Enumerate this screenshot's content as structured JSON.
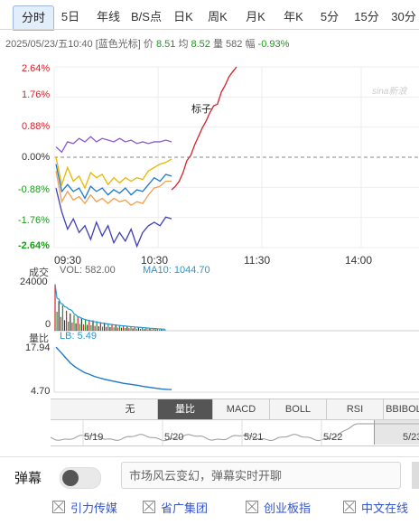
{
  "tabs": [
    "分时",
    "5日",
    "年线",
    "B/S点",
    "日K",
    "周K",
    "月K",
    "年K",
    "5分",
    "15分",
    "30分"
  ],
  "active_tab": "分时",
  "info": {
    "datetime": "2025/05/23/五10:40",
    "name": "[蓝色光标]",
    "price_label": "价",
    "price": "8.51",
    "avg_label": "均",
    "avg": "8.52",
    "volume_label": "量",
    "volume": "582",
    "change_label": "幅",
    "change": "-0.93%"
  },
  "watermark": "sina新浪",
  "annotation": "标子",
  "chart_data": [
    {
      "type": "line",
      "title": "分时",
      "y_ticks": [
        "2.64%",
        "1.76%",
        "0.88%",
        "0.00%",
        "-0.88%",
        "-1.76%",
        "-2.64%"
      ],
      "ylim": [
        -2.64,
        2.64
      ],
      "x_ticks": [
        "09:30",
        "10:30",
        "11:30",
        "14:00"
      ],
      "series": [
        {
          "name": "",
          "color": "#8a5cc9",
          "values": [
            0.3,
            0.15,
            0.45,
            0.4,
            0.55,
            0.45,
            0.6,
            0.45,
            0.55,
            0.5,
            0.45,
            0.55,
            0.45,
            0.5,
            0.4,
            0.45,
            0.4,
            0.45,
            0.45,
            0.5,
            0.45
          ]
        },
        {
          "name": "",
          "color": "#e8b800",
          "values": [
            0.0,
            -0.8,
            -0.3,
            -0.7,
            -0.55,
            -0.9,
            -0.45,
            -0.6,
            -0.5,
            -0.8,
            -0.6,
            -0.75,
            -0.6,
            -0.7,
            -0.6,
            -0.65,
            -0.4,
            -0.3,
            -0.2,
            -0.15,
            -0.05
          ]
        },
        {
          "name": "",
          "color": "#1f78c8",
          "values": [
            -0.2,
            -1.0,
            -0.8,
            -1.0,
            -0.9,
            -1.2,
            -0.85,
            -1.0,
            -0.9,
            -1.1,
            -0.95,
            -1.05,
            -0.9,
            -1.1,
            -0.95,
            -1.0,
            -0.8,
            -0.6,
            -0.7,
            -0.5,
            -0.55
          ]
        },
        {
          "name": "",
          "color": "#f0a050",
          "values": [
            -0.4,
            -1.3,
            -1.0,
            -1.25,
            -1.15,
            -1.35,
            -1.1,
            -1.3,
            -1.2,
            -1.35,
            -1.2,
            -1.3,
            -1.25,
            -1.4,
            -1.3,
            -1.35,
            -1.1,
            -0.9,
            -0.85,
            -0.7,
            -0.7
          ]
        },
        {
          "name": "",
          "color": "#3f3fb5",
          "values": [
            -0.9,
            -1.6,
            -2.1,
            -1.8,
            -2.2,
            -2.0,
            -2.4,
            -1.9,
            -2.3,
            -2.0,
            -2.5,
            -2.2,
            -2.45,
            -2.1,
            -2.6,
            -2.2,
            -2.0,
            -1.9,
            -2.0,
            -1.75,
            -1.8
          ]
        },
        {
          "name": "",
          "color": "#d8202a",
          "values": [
            -0.95,
            -0.85,
            -0.7,
            -0.45,
            -0.1,
            0.05,
            0.35,
            0.6,
            0.85,
            1.05,
            1.3,
            1.5,
            1.55,
            1.9,
            2.1,
            2.35,
            2.5,
            2.64
          ]
        }
      ]
    },
    {
      "type": "bar",
      "title": "成交",
      "y_ticks": [
        "24000",
        "0"
      ],
      "ylim": [
        0,
        24000
      ],
      "values": [
        22000,
        9000,
        14000,
        6500,
        12000,
        5000,
        9500,
        4300,
        8200,
        3900,
        7400,
        3500,
        6900,
        3200,
        6200,
        3000,
        5600,
        2800,
        5200,
        2600,
        4900,
        2300,
        4500,
        2100,
        4100,
        1900,
        3800,
        1800,
        3500,
        1700,
        3200,
        1600,
        3000,
        1500,
        2700,
        1400,
        2500,
        1300,
        2300,
        1200,
        2100,
        1100,
        1900,
        1000,
        1700,
        900,
        1500,
        800,
        1300,
        700,
        1100,
        650,
        950,
        600,
        800,
        550,
        700,
        500,
        600
      ],
      "volume_label": "VOL: 582.00",
      "ma10_label": "MA10: 1044.70"
    },
    {
      "type": "line",
      "title": "量比",
      "name": "LB: 5.49",
      "y_ticks": [
        "17.94",
        "4.70"
      ],
      "ylim": [
        4.7,
        17.94
      ],
      "values": [
        17.9,
        16.4,
        14.8,
        13.2,
        12.1,
        11.2,
        10.4,
        9.9,
        9.3,
        8.9,
        8.5,
        8.2,
        7.9,
        7.6,
        7.3,
        7.1,
        6.9,
        6.7,
        6.4,
        6.2,
        6.0,
        5.8,
        5.6,
        5.5,
        5.49
      ]
    }
  ],
  "indicator_tabs": [
    "无",
    "量比",
    "MACD",
    "BOLL",
    "RSI",
    "BBIBOLL"
  ],
  "active_indicator": "量比",
  "nav_dates": [
    "5/19",
    "5/20",
    "5/21",
    "5/22",
    "5/23"
  ],
  "danmu": {
    "label": "弹幕",
    "placeholder": "市场风云变幻，弹幕实时开聊"
  },
  "ads": [
    "引力传媒",
    "省广集团",
    "创业板指",
    "中文在线"
  ]
}
